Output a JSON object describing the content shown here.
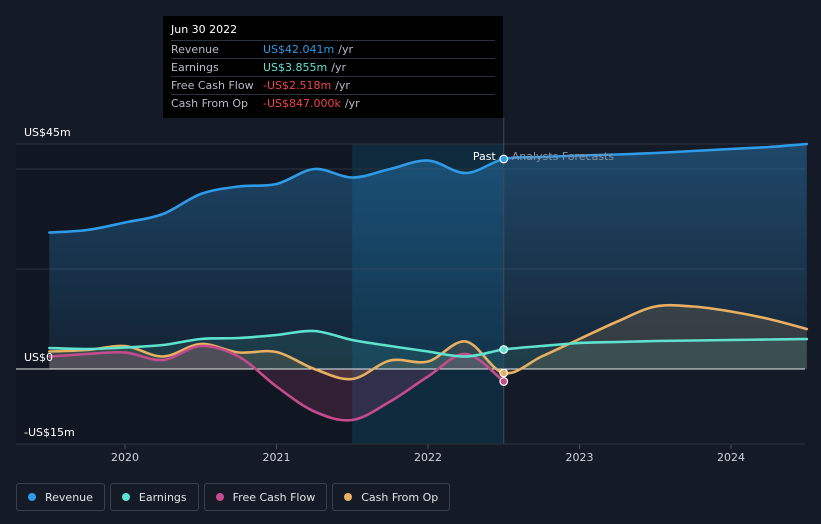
{
  "tooltip": {
    "date": "Jun 30 2022",
    "rows": [
      {
        "label": "Revenue",
        "value": "US$42.041m",
        "unit": "/yr",
        "color": "#2f9ae6"
      },
      {
        "label": "Earnings",
        "value": "US$3.855m",
        "unit": "/yr",
        "color": "#5ee2cf"
      },
      {
        "label": "Free Cash Flow",
        "value": "-US$2.518m",
        "unit": "/yr",
        "color": "#f0444b"
      },
      {
        "label": "Cash From Op",
        "value": "-US$847.000k",
        "unit": "/yr",
        "color": "#f0444b"
      }
    ]
  },
  "legend": [
    {
      "label": "Revenue",
      "color": "#2f9ae6"
    },
    {
      "label": "Earnings",
      "color": "#5ee2cf"
    },
    {
      "label": "Free Cash Flow",
      "color": "#c64b8c"
    },
    {
      "label": "Cash From Op",
      "color": "#e7b062"
    }
  ],
  "chart_data": {
    "type": "line",
    "title": "",
    "xlabel": "",
    "ylabel": "",
    "ylim": [
      -15,
      45
    ],
    "xlim": [
      2019.45,
      2024.5
    ],
    "x_ticks": [
      2020,
      2021,
      2022,
      2023,
      2024
    ],
    "x_tick_labels": [
      "2020",
      "2021",
      "2022",
      "2023",
      "2024"
    ],
    "y_ticks": [
      45,
      0,
      -15
    ],
    "y_tick_labels": [
      "US$45m",
      "US$0",
      "-US$15m"
    ],
    "gridlines": [
      45,
      40,
      20
    ],
    "divider_x": 2022.5,
    "past_label": "Past",
    "forecast_label": "Analysts Forecasts",
    "highlight_range": [
      2021.5,
      2022.5
    ],
    "series": [
      {
        "name": "Revenue",
        "color": "#2f9ae6",
        "x": [
          2019.5,
          2019.75,
          2020.0,
          2020.25,
          2020.5,
          2020.75,
          2021.0,
          2021.25,
          2021.5,
          2021.75,
          2022.0,
          2022.25,
          2022.5,
          2022.75,
          2023.0,
          2023.25,
          2023.5,
          2023.75,
          2024.0,
          2024.25,
          2024.5
        ],
        "y": [
          27.3,
          27.8,
          29.3,
          31.0,
          35.0,
          36.5,
          37.0,
          40.0,
          38.3,
          40.0,
          41.7,
          39.2,
          42.0,
          42.4,
          42.7,
          42.9,
          43.2,
          43.6,
          44.0,
          44.4,
          45.0
        ]
      },
      {
        "name": "Earnings",
        "color": "#5ee2cf",
        "x": [
          2019.5,
          2019.75,
          2020.0,
          2020.25,
          2020.5,
          2020.75,
          2021.0,
          2021.25,
          2021.5,
          2021.75,
          2022.0,
          2022.25,
          2022.5,
          2022.75,
          2023.0,
          2023.25,
          2023.5,
          2023.75,
          2024.0,
          2024.25,
          2024.5
        ],
        "y": [
          4.2,
          4.0,
          4.3,
          4.8,
          6.0,
          6.2,
          6.8,
          7.6,
          5.8,
          4.6,
          3.5,
          2.5,
          3.9,
          4.6,
          5.2,
          5.4,
          5.6,
          5.7,
          5.8,
          5.9,
          6.0
        ]
      },
      {
        "name": "Free Cash Flow",
        "color": "#c64b8c",
        "x": [
          2019.5,
          2019.75,
          2020.0,
          2020.25,
          2020.5,
          2020.75,
          2021.0,
          2021.25,
          2021.5,
          2021.75,
          2022.0,
          2022.25,
          2022.5
        ],
        "y": [
          2.5,
          3.0,
          3.3,
          1.8,
          4.6,
          2.5,
          -3.5,
          -8.5,
          -10.2,
          -6.5,
          -1.5,
          3.0,
          -2.5
        ]
      },
      {
        "name": "Cash From Op",
        "color": "#e7b062",
        "x": [
          2019.5,
          2019.75,
          2020.0,
          2020.25,
          2020.5,
          2020.75,
          2021.0,
          2021.25,
          2021.5,
          2021.75,
          2022.0,
          2022.25,
          2022.5,
          2022.75,
          2023.0,
          2023.25,
          2023.5,
          2023.75,
          2024.0,
          2024.25,
          2024.5
        ],
        "y": [
          3.5,
          3.8,
          4.6,
          2.5,
          5.0,
          3.3,
          3.4,
          0.0,
          -2.0,
          1.7,
          1.5,
          5.5,
          -0.8,
          2.5,
          6.0,
          9.5,
          12.5,
          12.5,
          11.5,
          10.0,
          8.0
        ]
      }
    ],
    "markers": [
      {
        "series": "Revenue",
        "x": 2022.5,
        "y": 42.0,
        "fill": "#2f9ae6"
      },
      {
        "series": "Earnings",
        "x": 2022.5,
        "y": 3.9,
        "fill": "#5ee2cf"
      },
      {
        "series": "Cash From Op",
        "x": 2022.5,
        "y": -0.8,
        "fill": "#e7b062"
      },
      {
        "series": "Free Cash Flow",
        "x": 2022.5,
        "y": -2.5,
        "fill": "#c64b8c"
      }
    ]
  }
}
